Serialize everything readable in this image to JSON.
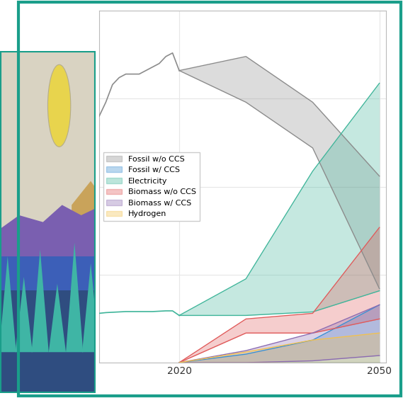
{
  "chart_data": {
    "type": "area",
    "history_x": [
      2008,
      2009,
      2010,
      2011,
      2012,
      2013,
      2014,
      2015,
      2016,
      2017,
      2018,
      2019,
      2020
    ],
    "x": [
      2020,
      2030,
      2040,
      2050
    ],
    "series": [
      {
        "name": "Fossil w/o CCS",
        "color": "#8c8c8c",
        "history_values": [
          70,
          74,
          79,
          81,
          82,
          82,
          82,
          83,
          84,
          85,
          87,
          88,
          83
        ],
        "lower": [
          83,
          74,
          61,
          21
        ],
        "upper": [
          83,
          87,
          74,
          53
        ]
      },
      {
        "name": "Fossil w/ CCS",
        "color": "#3a8fd1",
        "lower": [
          0,
          0,
          0,
          0
        ],
        "upper": [
          0,
          2.4,
          6.4,
          16.4
        ]
      },
      {
        "name": "Electricity",
        "color": "#3fb59a",
        "history_values": [
          14.0,
          14.2,
          14.3,
          14.4,
          14.5,
          14.5,
          14.5,
          14.5,
          14.5,
          14.6,
          14.7,
          14.7,
          13.4
        ],
        "lower": [
          13.4,
          13.4,
          14.4,
          20.4
        ],
        "upper": [
          13.4,
          23.8,
          54.4,
          79.4
        ]
      },
      {
        "name": "Biomass w/o CCS",
        "color": "#e05a5a",
        "lower": [
          0,
          8.4,
          8.4,
          12.4
        ],
        "upper": [
          0,
          12.4,
          14,
          38.4
        ]
      },
      {
        "name": "Biomass w/ CCS",
        "color": "#8b6bb1",
        "lower": [
          0,
          0,
          0.5,
          2
        ],
        "upper": [
          0,
          3.4,
          8.4,
          16.4
        ]
      },
      {
        "name": "Hydrogen",
        "color": "#f2c14e",
        "lower": [
          0,
          0,
          0,
          0
        ],
        "upper": [
          0,
          3,
          6.4,
          8.4
        ]
      }
    ],
    "xlim": [
      2008,
      2051
    ],
    "xticks": [
      2020,
      2050
    ],
    "ylim": [
      0,
      100
    ],
    "yticks": [
      0,
      25,
      50,
      75,
      100
    ],
    "grid": true,
    "legend": "center left",
    "tick_labels": "x"
  }
}
